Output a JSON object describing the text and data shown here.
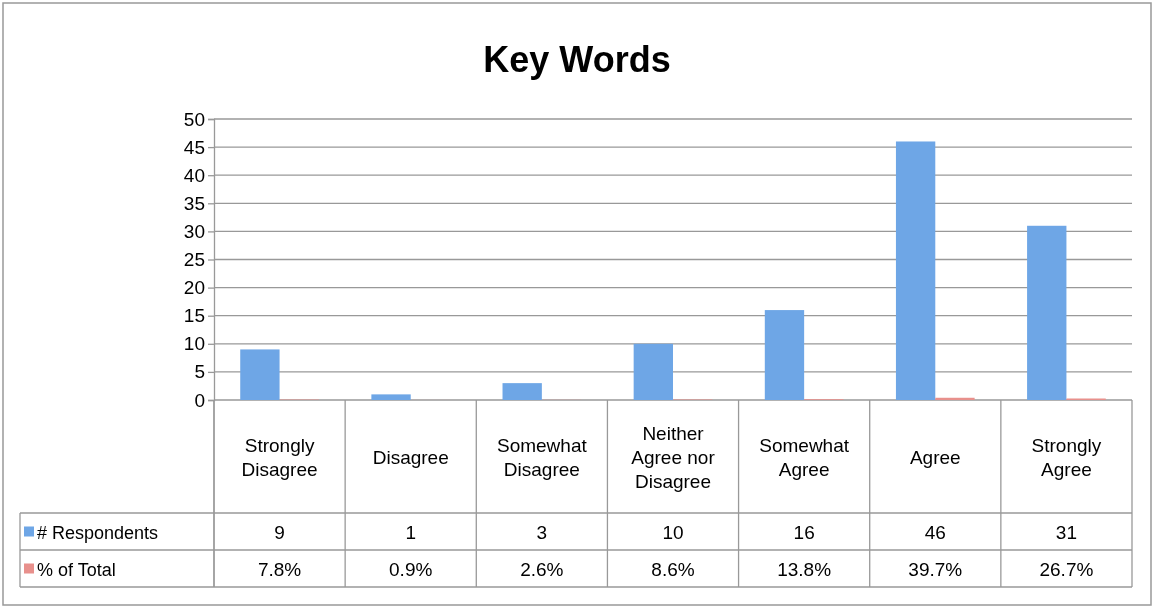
{
  "chart_data": {
    "type": "bar",
    "title": "Key Words",
    "categories": [
      "Strongly Disagree",
      "Disagree",
      "Somewhat Disagree",
      "Neither Agree nor Disagree",
      "Somewhat Agree",
      "Agree",
      "Strongly Agree"
    ],
    "series": [
      {
        "name": "# Respondents",
        "color": "#6ea6e6",
        "values": [
          9,
          1,
          3,
          10,
          16,
          46,
          31
        ],
        "value_labels": [
          "9",
          "1",
          "3",
          "10",
          "16",
          "46",
          "31"
        ]
      },
      {
        "name": "% of Total",
        "color": "#e8908c",
        "values": [
          0.078,
          0.009,
          0.026,
          0.086,
          0.138,
          0.397,
          0.267
        ],
        "value_labels": [
          "7.8%",
          "0.9%",
          "2.6%",
          "8.6%",
          "13.8%",
          "39.7%",
          "26.7%"
        ]
      }
    ],
    "ylim": [
      0,
      50
    ],
    "yticks": [
      0,
      5,
      10,
      15,
      20,
      25,
      30,
      35,
      40,
      45,
      50
    ],
    "grid": "y",
    "legend": "bottom left"
  }
}
